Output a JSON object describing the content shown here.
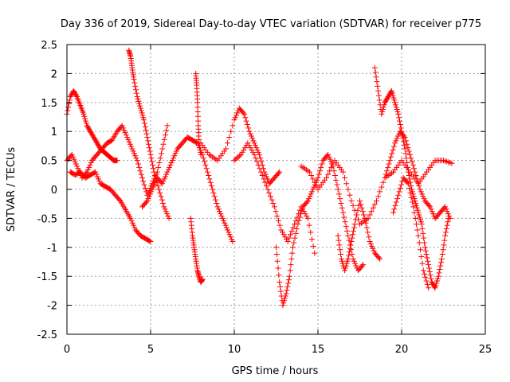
{
  "chart_data": {
    "type": "scatter",
    "title": "Day 336 of 2019, Sidereal Day-to-day VTEC variation (SDTVAR) for receiver p775",
    "xlabel": "GPS time / hours",
    "ylabel": "SDTVAR / TECUs",
    "xlim": [
      0,
      25
    ],
    "ylim": [
      -2.5,
      2.5
    ],
    "x_ticks": [
      0,
      5,
      10,
      15,
      20,
      25
    ],
    "y_ticks": [
      -2.5,
      -2,
      -1.5,
      -1,
      -0.5,
      0,
      0.5,
      1,
      1.5,
      2,
      2.5
    ],
    "x_tick_labels": [
      "0",
      "5",
      "10",
      "15",
      "20",
      "25"
    ],
    "y_tick_labels": [
      "-2.5",
      "-2",
      "-1.5",
      "-1",
      "-0.5",
      "0",
      "0.5",
      "1",
      "1.5",
      "2",
      "2.5"
    ],
    "grid": true,
    "marker": "+",
    "color": "#ff0000",
    "series": [
      {
        "name": "s1",
        "x": [
          0.0,
          0.2,
          0.4,
          0.6,
          0.8,
          1.0,
          1.2,
          1.4,
          1.6,
          1.8,
          2.0,
          2.2,
          2.4,
          2.6,
          2.8,
          3.0
        ],
        "y": [
          1.3,
          1.6,
          1.7,
          1.6,
          1.45,
          1.3,
          1.1,
          1.0,
          0.9,
          0.8,
          0.7,
          0.65,
          0.6,
          0.55,
          0.5,
          0.5
        ]
      },
      {
        "name": "s2",
        "x": [
          0.0,
          0.3,
          0.6,
          0.9,
          1.2,
          1.5,
          1.8,
          2.1,
          2.4,
          2.7,
          3.0,
          3.3,
          3.6,
          3.9,
          4.2,
          4.5,
          4.8,
          5.1,
          5.4,
          5.7,
          6.0
        ],
        "y": [
          0.5,
          0.6,
          0.4,
          0.2,
          0.3,
          0.5,
          0.6,
          0.7,
          0.8,
          0.85,
          1.0,
          1.1,
          0.9,
          0.7,
          0.5,
          0.2,
          -0.1,
          0.1,
          0.3,
          0.7,
          1.1
        ]
      },
      {
        "name": "s3",
        "x": [
          0.2,
          0.5,
          0.8,
          1.1,
          1.4,
          1.7,
          2.0,
          2.3,
          2.6,
          2.9,
          3.2,
          3.5,
          3.8,
          4.1,
          4.4,
          4.7,
          5.0
        ],
        "y": [
          0.3,
          0.25,
          0.3,
          0.2,
          0.25,
          0.3,
          0.1,
          0.05,
          0.0,
          -0.1,
          -0.2,
          -0.35,
          -0.5,
          -0.7,
          -0.8,
          -0.85,
          -0.9
        ]
      },
      {
        "name": "s4",
        "x": [
          3.7,
          3.8,
          3.9,
          4.0,
          4.2,
          4.4,
          4.6,
          4.8,
          5.0,
          5.2,
          5.5,
          5.8,
          6.1
        ],
        "y": [
          2.4,
          2.3,
          2.1,
          1.9,
          1.6,
          1.4,
          1.2,
          0.9,
          0.6,
          0.3,
          0.0,
          -0.3,
          -0.5
        ]
      },
      {
        "name": "s5",
        "x": [
          4.5,
          4.8,
          5.1,
          5.4,
          5.7,
          6.0,
          6.3,
          6.6,
          6.9,
          7.2,
          7.5,
          7.8,
          8.1,
          8.4,
          8.7,
          9.0,
          9.3,
          9.6,
          9.9
        ],
        "y": [
          -0.3,
          -0.2,
          0.0,
          0.2,
          0.1,
          0.3,
          0.5,
          0.7,
          0.8,
          0.9,
          0.85,
          0.8,
          0.6,
          0.3,
          0.0,
          -0.3,
          -0.5,
          -0.7,
          -0.9
        ]
      },
      {
        "name": "s6",
        "x": [
          7.4,
          7.5,
          7.6,
          7.7,
          7.8,
          7.9,
          8.0,
          8.1
        ],
        "y": [
          -0.5,
          -0.8,
          -1.0,
          -1.2,
          -1.4,
          -1.5,
          -1.6,
          -1.55
        ]
      },
      {
        "name": "s7",
        "x": [
          7.7,
          7.75,
          7.8,
          7.85,
          7.9,
          8.0
        ],
        "y": [
          2.0,
          1.8,
          1.5,
          1.1,
          0.8,
          0.6
        ]
      },
      {
        "name": "s8",
        "x": [
          8.0,
          8.5,
          9.0,
          9.5,
          10.0,
          10.3,
          10.6,
          10.9,
          11.2,
          11.5,
          11.8,
          12.1,
          12.4,
          12.7
        ],
        "y": [
          0.8,
          0.6,
          0.5,
          0.7,
          1.2,
          1.4,
          1.3,
          1.0,
          0.8,
          0.6,
          0.3,
          0.1,
          0.2,
          0.3
        ]
      },
      {
        "name": "s9",
        "x": [
          10.0,
          10.4,
          10.8,
          11.2,
          11.6,
          12.0,
          12.4,
          12.8,
          13.2,
          13.6,
          14.0,
          14.4,
          14.8
        ],
        "y": [
          0.5,
          0.6,
          0.8,
          0.6,
          0.3,
          0.0,
          -0.3,
          -0.7,
          -0.9,
          -0.6,
          -0.3,
          -0.5,
          -1.1
        ]
      },
      {
        "name": "s10",
        "x": [
          12.5,
          12.7,
          12.9,
          13.1,
          13.3,
          13.5,
          13.8,
          14.1,
          14.4,
          14.7,
          15.0,
          15.3,
          15.6,
          15.9,
          16.2,
          16.5,
          16.8,
          17.1,
          17.4,
          17.7
        ],
        "y": [
          -1.0,
          -1.6,
          -2.0,
          -1.8,
          -1.5,
          -1.0,
          -0.6,
          -0.3,
          -0.2,
          0.0,
          0.2,
          0.5,
          0.6,
          0.4,
          0.0,
          -0.4,
          -0.8,
          -1.2,
          -1.4,
          -1.3
        ]
      },
      {
        "name": "s11",
        "x": [
          14.0,
          14.5,
          15.0,
          15.5,
          16.0,
          16.5,
          17.0,
          17.5,
          18.0,
          18.5,
          19.0,
          19.5,
          20.0,
          20.5,
          21.0,
          21.5,
          22.0,
          22.5,
          23.0
        ],
        "y": [
          0.4,
          0.3,
          0.0,
          0.2,
          0.5,
          0.3,
          -0.2,
          -0.6,
          -0.5,
          -0.2,
          0.2,
          0.3,
          0.5,
          0.3,
          0.1,
          0.3,
          0.5,
          0.5,
          0.45
        ]
      },
      {
        "name": "s12",
        "x": [
          16.2,
          16.4,
          16.6,
          16.8,
          17.0,
          17.2,
          17.5,
          17.8,
          18.1,
          18.4,
          18.7
        ],
        "y": [
          -0.8,
          -1.2,
          -1.4,
          -1.2,
          -0.9,
          -0.6,
          -0.2,
          -0.5,
          -0.9,
          -1.1,
          -1.2
        ]
      },
      {
        "name": "s13",
        "x": [
          18.4,
          18.6,
          18.8,
          19.0,
          19.2,
          19.4,
          19.6,
          19.8,
          20.0,
          20.2,
          20.4,
          20.6,
          20.8,
          21.0,
          21.2,
          21.4,
          21.6,
          21.8,
          22.0,
          22.2,
          22.4,
          22.6,
          22.8
        ],
        "y": [
          2.1,
          1.7,
          1.3,
          1.5,
          1.6,
          1.7,
          1.5,
          1.3,
          1.0,
          0.7,
          0.3,
          0.0,
          -0.2,
          -0.4,
          -0.6,
          -1.0,
          -1.3,
          -1.6,
          -1.7,
          -1.5,
          -1.2,
          -0.8,
          -0.5
        ]
      },
      {
        "name": "s14",
        "x": [
          19.0,
          19.3,
          19.6,
          19.9,
          20.2,
          20.5,
          20.8,
          21.1,
          21.4,
          21.7,
          22.0,
          22.3,
          22.6,
          22.9
        ],
        "y": [
          0.2,
          0.5,
          0.8,
          1.0,
          0.9,
          0.6,
          0.3,
          0.0,
          -0.2,
          -0.3,
          -0.5,
          -0.4,
          -0.3,
          -0.5
        ]
      },
      {
        "name": "s15",
        "x": [
          19.5,
          19.8,
          20.1,
          20.4,
          20.7,
          21.0,
          21.3,
          21.6
        ],
        "y": [
          -0.4,
          -0.1,
          0.2,
          0.1,
          -0.3,
          -0.8,
          -1.4,
          -1.7
        ]
      }
    ]
  }
}
